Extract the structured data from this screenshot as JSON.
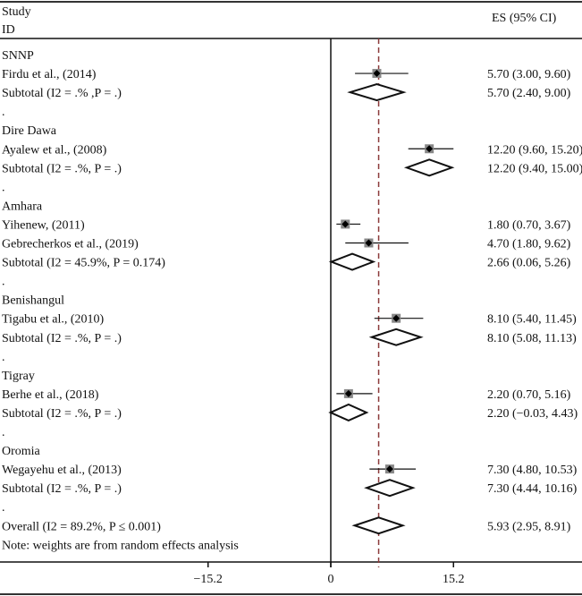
{
  "chart_data": {
    "type": "forest",
    "header": {
      "study": "Study",
      "id": "ID",
      "es": "ES (95% CI)"
    },
    "xticks": [
      -15.2,
      0,
      15.2
    ],
    "xtick_labels": [
      "−15.2",
      "0",
      "15.2"
    ],
    "xlim": [
      -15.3,
      30.8
    ],
    "overall_line": 5.93,
    "colors": {
      "line": "#111111",
      "overall_line": "#8b3a3a",
      "square": "#888888"
    },
    "rows": [
      {
        "type": "group",
        "label": "SNNP"
      },
      {
        "type": "study",
        "label": "Firdu et al., (2014)",
        "es": 5.7,
        "lo": 3.0,
        "hi": 9.6,
        "text": "5.70 (3.00, 9.60)"
      },
      {
        "type": "subtotal",
        "label": "Subtotal (I2 = .% ,P = .)",
        "es": 5.7,
        "lo": 2.4,
        "hi": 9.0,
        "text": "5.70 (2.40, 9.00)"
      },
      {
        "type": "spacer",
        "label": "."
      },
      {
        "type": "group",
        "label": "Dire Dawa"
      },
      {
        "type": "study",
        "label": "Ayalew et al., (2008)",
        "es": 12.2,
        "lo": 9.6,
        "hi": 15.2,
        "text": "12.20 (9.60, 15.20)"
      },
      {
        "type": "subtotal",
        "label": "Subtotal (I2 = .%, P = .)",
        "es": 12.2,
        "lo": 9.4,
        "hi": 15.0,
        "text": "12.20 (9.40, 15.00)"
      },
      {
        "type": "spacer",
        "label": "."
      },
      {
        "type": "group",
        "label": "Amhara"
      },
      {
        "type": "study",
        "label": "Yihenew, (2011)",
        "es": 1.8,
        "lo": 0.7,
        "hi": 3.67,
        "text": "1.80 (0.70, 3.67)"
      },
      {
        "type": "study",
        "label": "Gebrecherkos et al., (2019)",
        "es": 4.7,
        "lo": 1.8,
        "hi": 9.62,
        "text": "4.70 (1.80, 9.62)"
      },
      {
        "type": "subtotal",
        "label": "Subtotal (I2 = 45.9%, P = 0.174)",
        "es": 2.66,
        "lo": 0.06,
        "hi": 5.26,
        "text": "2.66 (0.06, 5.26)"
      },
      {
        "type": "spacer",
        "label": "."
      },
      {
        "type": "group",
        "label": "Benishangul"
      },
      {
        "type": "study",
        "label": "Tigabu et al., (2010)",
        "es": 8.1,
        "lo": 5.4,
        "hi": 11.45,
        "text": "8.10 (5.40, 11.45)"
      },
      {
        "type": "subtotal",
        "label": "Subtotal (I2 = .%, P = .)",
        "es": 8.1,
        "lo": 5.08,
        "hi": 11.13,
        "text": "8.10 (5.08, 11.13)"
      },
      {
        "type": "spacer",
        "label": "."
      },
      {
        "type": "group",
        "label": "Tigray"
      },
      {
        "type": "study",
        "label": "Berhe et al., (2018)",
        "es": 2.2,
        "lo": 0.7,
        "hi": 5.16,
        "text": "2.20 (0.70, 5.16)"
      },
      {
        "type": "subtotal",
        "label": "Subtotal (I2 = .%, P = .)",
        "es": 2.2,
        "lo": -0.03,
        "hi": 4.43,
        "text": "2.20 (−0.03, 4.43)"
      },
      {
        "type": "spacer",
        "label": "."
      },
      {
        "type": "group",
        "label": "Oromia"
      },
      {
        "type": "study",
        "label": "Wegayehu et al., (2013)",
        "es": 7.3,
        "lo": 4.8,
        "hi": 10.53,
        "text": "7.30 (4.80, 10.53)"
      },
      {
        "type": "subtotal",
        "label": "Subtotal (I2 = .%, P = .)",
        "es": 7.3,
        "lo": 4.44,
        "hi": 10.16,
        "text": "7.30 (4.44, 10.16)"
      },
      {
        "type": "spacer",
        "label": "."
      },
      {
        "type": "overall",
        "label": "Overall (I2 = 89.2%, P ≤ 0.001)",
        "es": 5.93,
        "lo": 2.95,
        "hi": 8.91,
        "text": "5.93 (2.95, 8.91)"
      },
      {
        "type": "note",
        "label": "Note: weights are from random effects analysis"
      }
    ]
  }
}
